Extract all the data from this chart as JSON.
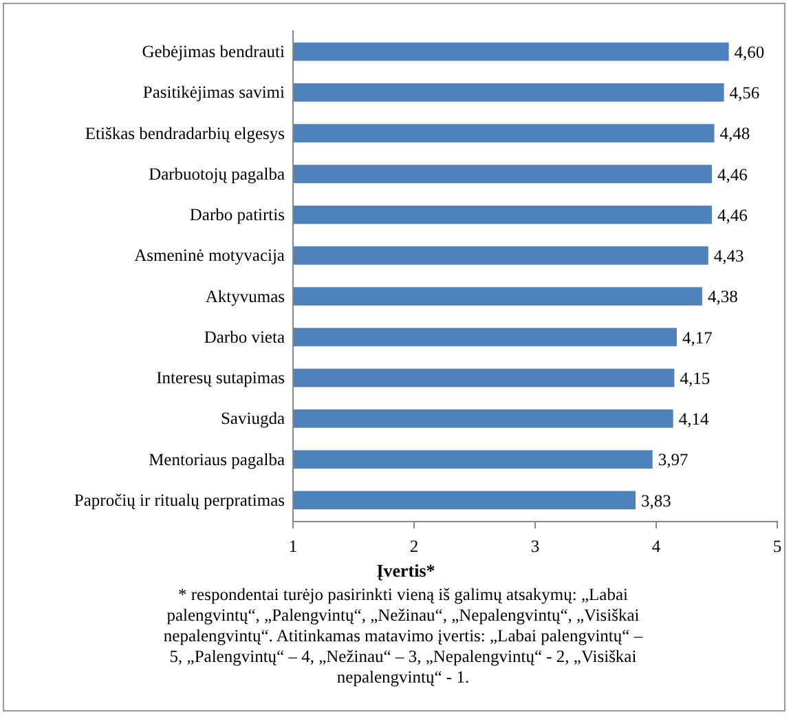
{
  "chart_data": {
    "type": "bar",
    "orientation": "horizontal",
    "categories": [
      "Gebėjimas bendrauti",
      "Pasitikėjimas savimi",
      "Etiškas bendradarbių elgesys",
      "Darbuotojų pagalba",
      "Darbo patirtis",
      "Asmeninė motyvacija",
      "Aktyvumas",
      "Darbo vieta",
      "Interesų sutapimas",
      "Saviugda",
      "Mentoriaus pagalba",
      "Papročių ir ritualų perpratimas"
    ],
    "values": [
      4.6,
      4.56,
      4.48,
      4.46,
      4.46,
      4.43,
      4.38,
      4.17,
      4.15,
      4.14,
      3.97,
      3.83
    ],
    "value_labels": [
      "4,60",
      "4,56",
      "4,48",
      "4,46",
      "4,46",
      "4,43",
      "4,38",
      "4,17",
      "4,15",
      "4,14",
      "3,97",
      "3,83"
    ],
    "color": "#4f81bd",
    "xlim": [
      1,
      5
    ],
    "xticks": [
      1,
      2,
      3,
      4,
      5
    ],
    "xlabel": "Įvertis*",
    "annotations": [
      "* respondentai turėjo pasirinkti vieną iš galimų atsakymų: „Labai palengvintų“, „Palengvintų“, „Nežinau“, „Nepalengvintų“, „Visiškai nepalengvintų“. Atitinkamas matavimo įvertis: „Labai palengvintų“ – 5, „Palengvintų“ – 4, „Nežinau“ – 3, „Nepalengvintų“ - 2, „Visiškai nepalengvintų“ - 1."
    ],
    "grid": false
  }
}
